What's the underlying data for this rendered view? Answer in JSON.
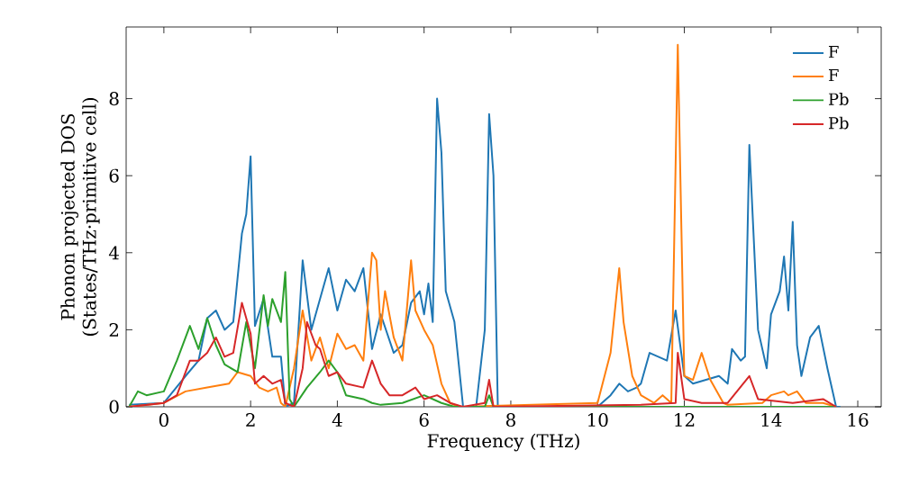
{
  "chart_data": {
    "type": "line",
    "xlabel": "Frequency (THz)",
    "ylabel": "Phonon projected DOS (States/THz·primitive cell)",
    "xlim": [
      -0.87,
      16.54
    ],
    "ylim": [
      0,
      9.86
    ],
    "xticks": [
      0,
      2,
      4,
      6,
      8,
      10,
      12,
      14,
      16
    ],
    "yticks": [
      0,
      2,
      4,
      6,
      8
    ],
    "legend": "top right",
    "grid": false,
    "series": [
      {
        "name": "F",
        "color": "#1f77b4",
        "x": [
          -0.8,
          0,
          0.5,
          0.8,
          1.0,
          1.2,
          1.4,
          1.6,
          1.8,
          1.9,
          2.0,
          2.1,
          2.3,
          2.5,
          2.7,
          2.8,
          3.0,
          3.2,
          3.4,
          3.6,
          3.8,
          4.0,
          4.2,
          4.4,
          4.6,
          4.8,
          5.0,
          5.3,
          5.5,
          5.7,
          5.9,
          6.0,
          6.1,
          6.2,
          6.3,
          6.4,
          6.5,
          6.7,
          6.9,
          7.2,
          7.4,
          7.5,
          7.6,
          7.7,
          10.0,
          10.3,
          10.5,
          10.7,
          10.9,
          11.0,
          11.2,
          11.4,
          11.6,
          11.8,
          12.0,
          12.2,
          12.5,
          12.8,
          13.0,
          13.1,
          13.3,
          13.4,
          13.5,
          13.7,
          13.9,
          14.0,
          14.2,
          14.3,
          14.4,
          14.5,
          14.6,
          14.7,
          14.9,
          15.1,
          15.3,
          15.5,
          15.6
        ],
        "values": [
          0.05,
          0.1,
          0.8,
          1.2,
          2.3,
          2.5,
          2.0,
          2.2,
          4.5,
          5.0,
          6.5,
          2.1,
          2.8,
          1.3,
          1.3,
          0.0,
          0.1,
          3.8,
          2.0,
          2.8,
          3.6,
          2.5,
          3.3,
          3.0,
          3.6,
          1.5,
          2.4,
          1.4,
          1.6,
          2.7,
          3.0,
          2.4,
          3.2,
          2.2,
          8.0,
          6.6,
          3.0,
          2.2,
          0.0,
          0.0,
          2.0,
          7.6,
          6.0,
          0.0,
          0.0,
          0.3,
          0.6,
          0.4,
          0.5,
          0.6,
          1.4,
          1.3,
          1.2,
          2.5,
          0.8,
          0.6,
          0.7,
          0.8,
          0.6,
          1.5,
          1.2,
          1.3,
          6.8,
          2.0,
          1.0,
          2.4,
          3.0,
          3.9,
          2.5,
          4.8,
          1.6,
          0.8,
          1.8,
          2.1,
          1.0,
          0.0,
          0.0
        ]
      },
      {
        "name": "F",
        "color": "#ff7f0e",
        "x": [
          -0.8,
          0,
          0.5,
          1.0,
          1.5,
          1.7,
          2.0,
          2.2,
          2.4,
          2.6,
          2.7,
          2.8,
          3.0,
          3.2,
          3.4,
          3.6,
          3.8,
          4.0,
          4.2,
          4.4,
          4.6,
          4.8,
          4.9,
          5.0,
          5.1,
          5.3,
          5.5,
          5.7,
          5.8,
          6.0,
          6.2,
          6.4,
          6.6,
          6.8,
          10.0,
          10.3,
          10.5,
          10.6,
          10.8,
          11.0,
          11.3,
          11.5,
          11.7,
          11.85,
          12.0,
          12.2,
          12.4,
          12.6,
          12.9,
          13.0,
          13.8,
          14.0,
          14.3,
          14.4,
          14.6,
          14.8,
          15.2,
          15.5
        ],
        "values": [
          0,
          0.1,
          0.4,
          0.5,
          0.6,
          0.9,
          0.8,
          0.5,
          0.4,
          0.5,
          0.1,
          0,
          1.0,
          2.5,
          1.2,
          1.8,
          1.0,
          1.9,
          1.5,
          1.6,
          1.2,
          4.0,
          3.8,
          2.0,
          3.0,
          1.8,
          1.2,
          3.8,
          2.5,
          2.0,
          1.6,
          0.6,
          0.1,
          0,
          0.1,
          1.4,
          3.6,
          2.2,
          0.8,
          0.3,
          0.1,
          0.3,
          0.1,
          9.4,
          0.8,
          0.7,
          1.4,
          0.7,
          0.1,
          0.05,
          0.1,
          0.3,
          0.4,
          0.3,
          0.4,
          0.1,
          0.1,
          0
        ]
      },
      {
        "name": "Pb",
        "color": "#2ca02c",
        "x": [
          -0.8,
          -0.6,
          -0.4,
          0,
          0.3,
          0.6,
          0.8,
          1.0,
          1.2,
          1.4,
          1.7,
          1.9,
          2.1,
          2.3,
          2.4,
          2.5,
          2.7,
          2.8,
          2.9,
          3.0,
          3.3,
          3.6,
          3.8,
          4.0,
          4.2,
          4.6,
          4.8,
          5.0,
          5.5,
          6.0,
          6.4,
          6.7,
          7.4,
          7.5,
          7.6,
          15.5
        ],
        "values": [
          0,
          0.4,
          0.3,
          0.4,
          1.2,
          2.1,
          1.5,
          2.3,
          1.6,
          1.1,
          0.9,
          2.2,
          1.0,
          2.9,
          2.1,
          2.8,
          2.2,
          3.5,
          0.2,
          0,
          0.5,
          0.9,
          1.2,
          0.9,
          0.3,
          0.2,
          0.1,
          0.05,
          0.1,
          0.3,
          0.1,
          0,
          0,
          0.3,
          0,
          0
        ]
      },
      {
        "name": "Pb",
        "color": "#d62728",
        "x": [
          -0.8,
          0,
          0.3,
          0.6,
          0.8,
          1.0,
          1.2,
          1.4,
          1.6,
          1.8,
          2.0,
          2.1,
          2.3,
          2.5,
          2.7,
          2.8,
          3.0,
          3.2,
          3.3,
          3.5,
          3.6,
          3.8,
          4.0,
          4.2,
          4.6,
          4.8,
          5.0,
          5.2,
          5.5,
          5.8,
          6.0,
          6.3,
          6.6,
          6.9,
          7.4,
          7.5,
          7.6,
          11.0,
          11.8,
          11.85,
          12.0,
          12.4,
          13.0,
          13.5,
          13.7,
          14.5,
          15.2,
          15.5
        ],
        "values": [
          0,
          0.1,
          0.3,
          1.2,
          1.2,
          1.4,
          1.8,
          1.3,
          1.4,
          2.7,
          1.9,
          0.6,
          0.8,
          0.6,
          0.7,
          0.1,
          0,
          1.0,
          2.2,
          1.6,
          1.5,
          0.8,
          0.9,
          0.6,
          0.5,
          1.2,
          0.6,
          0.3,
          0.3,
          0.5,
          0.2,
          0.3,
          0.1,
          0,
          0.1,
          0.7,
          0,
          0.05,
          0.1,
          1.4,
          0.2,
          0.1,
          0.1,
          0.8,
          0.2,
          0.1,
          0.2,
          0
        ]
      }
    ]
  }
}
